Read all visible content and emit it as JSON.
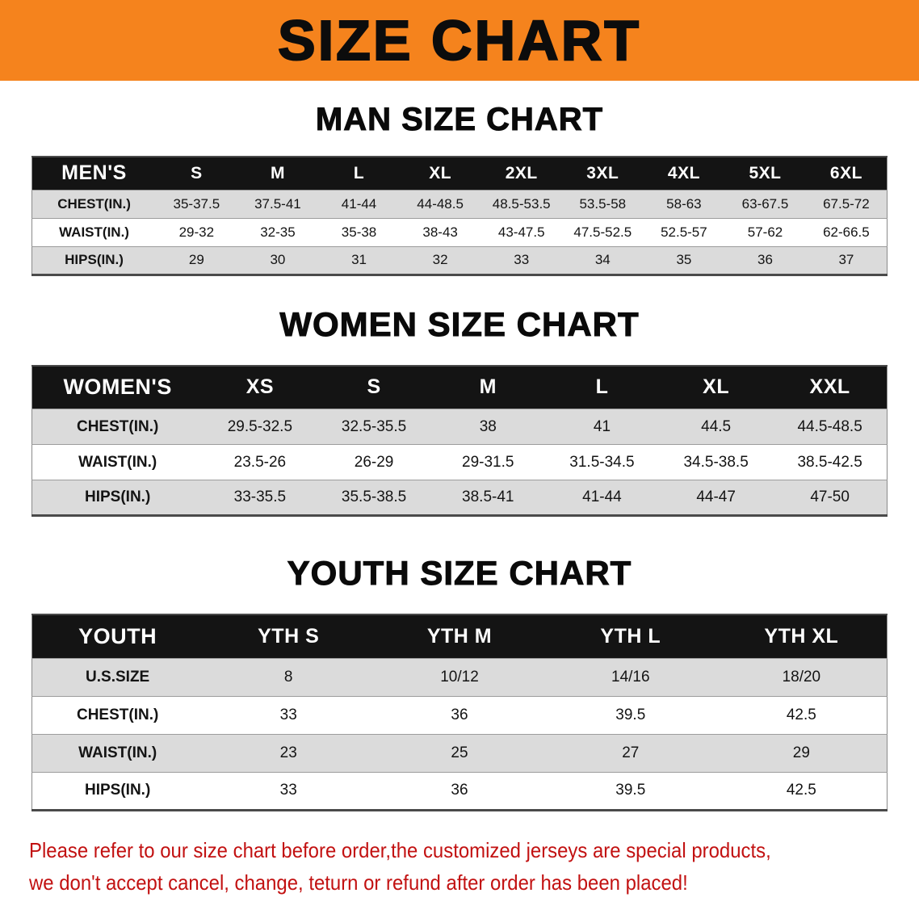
{
  "page": {
    "title": "SIZE CHART",
    "banner_color": "#f5831d",
    "footer_color": "#c21111"
  },
  "sections": [
    {
      "id": "men",
      "heading": "MAN SIZE CHART",
      "table": {
        "header": [
          "MEN'S",
          "S",
          "M",
          "L",
          "XL",
          "2XL",
          "3XL",
          "4XL",
          "5XL",
          "6XL"
        ],
        "rows": [
          [
            "CHEST(IN.)",
            "35-37.5",
            "37.5-41",
            "41-44",
            "44-48.5",
            "48.5-53.5",
            "53.5-58",
            "58-63",
            "63-67.5",
            "67.5-72"
          ],
          [
            "WAIST(IN.)",
            "29-32",
            "32-35",
            "35-38",
            "38-43",
            "43-47.5",
            "47.5-52.5",
            "52.5-57",
            "57-62",
            "62-66.5"
          ],
          [
            "HIPS(IN.)",
            "29",
            "30",
            "31",
            "32",
            "33",
            "34",
            "35",
            "36",
            "37"
          ]
        ]
      }
    },
    {
      "id": "women",
      "heading": "WOMEN SIZE CHART",
      "table": {
        "header": [
          "WOMEN'S",
          "XS",
          "S",
          "M",
          "L",
          "XL",
          "XXL"
        ],
        "rows": [
          [
            "CHEST(IN.)",
            "29.5-32.5",
            "32.5-35.5",
            "38",
            "41",
            "44.5",
            "44.5-48.5"
          ],
          [
            "WAIST(IN.)",
            "23.5-26",
            "26-29",
            "29-31.5",
            "31.5-34.5",
            "34.5-38.5",
            "38.5-42.5"
          ],
          [
            "HIPS(IN.)",
            "33-35.5",
            "35.5-38.5",
            "38.5-41",
            "41-44",
            "44-47",
            "47-50"
          ]
        ]
      }
    },
    {
      "id": "youth",
      "heading": "YOUTH SIZE CHART",
      "table": {
        "header": [
          "YOUTH",
          "YTH S",
          "YTH M",
          "YTH L",
          "YTH XL"
        ],
        "rows": [
          [
            "U.S.SIZE",
            "8",
            "10/12",
            "14/16",
            "18/20"
          ],
          [
            "CHEST(IN.)",
            "33",
            "36",
            "39.5",
            "42.5"
          ],
          [
            "WAIST(IN.)",
            "23",
            "25",
            "27",
            "29"
          ],
          [
            "HIPS(IN.)",
            "33",
            "36",
            "39.5",
            "42.5"
          ]
        ]
      }
    }
  ],
  "footer": {
    "lines": [
      "Please refer to our size chart before order,the customized jerseys are special products,",
      "we don't accept cancel, change, teturn or refund after order has been placed!"
    ]
  }
}
